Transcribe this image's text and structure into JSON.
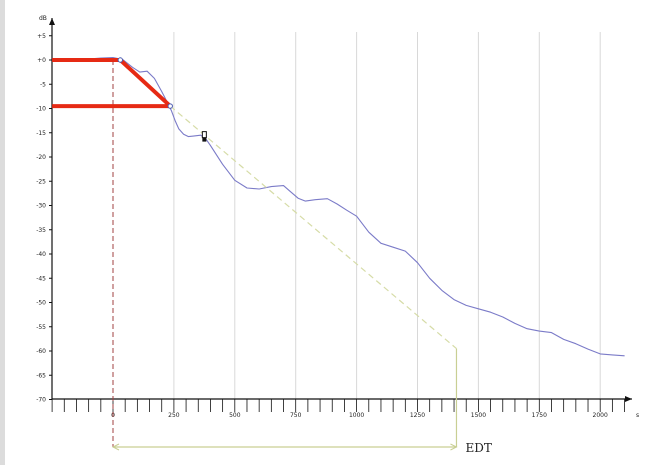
{
  "chart_data": {
    "type": "line",
    "title": "",
    "ylabel": "dB",
    "xlabel": "s",
    "ylim": [
      -70,
      5
    ],
    "xlim": [
      -250,
      2150
    ],
    "y_ticks": [
      "+5",
      "+0",
      "-5",
      "-10",
      "-15",
      "-20",
      "-25",
      "-30",
      "-35",
      "-40",
      "-45",
      "-50",
      "-55",
      "-60",
      "-65",
      "-70"
    ],
    "x_ticks": [
      "0",
      "250",
      "500",
      "750",
      "1000",
      "1250",
      "1500",
      "1750",
      "2000"
    ],
    "x_tick_values": [
      0,
      250,
      500,
      750,
      1000,
      1250,
      1500,
      1750,
      2000
    ],
    "grid": "vertical",
    "series": [
      {
        "kind": "decay-curve",
        "color": "#7b7bc8",
        "x": [
          -250,
          -200,
          -150,
          -100,
          -50,
          0,
          40,
          80,
          110,
          140,
          170,
          200,
          225,
          240,
          255,
          270,
          290,
          310,
          330,
          360,
          380,
          400,
          450,
          500,
          550,
          600,
          650,
          700,
          730,
          760,
          790,
          830,
          880,
          920,
          960,
          1000,
          1050,
          1100,
          1150,
          1200,
          1250,
          1300,
          1350,
          1400,
          1450,
          1500,
          1550,
          1600,
          1650,
          1700,
          1750,
          1800,
          1850,
          1900,
          1950,
          2000,
          2050,
          2100
        ],
        "y": [
          0,
          0.1,
          0.3,
          0.2,
          0.4,
          0.5,
          0.1,
          -1.5,
          -2.5,
          -2.3,
          -3.8,
          -6.5,
          -8.9,
          -10.5,
          -12.5,
          -14.2,
          -15.3,
          -15.8,
          -15.7,
          -15.5,
          -16.2,
          -17.6,
          -21.5,
          -24.8,
          -26.4,
          -26.6,
          -26.1,
          -25.9,
          -27.2,
          -28.5,
          -29.1,
          -28.8,
          -28.6,
          -29.7,
          -31.0,
          -32.2,
          -35.5,
          -37.8,
          -38.6,
          -39.4,
          -41.8,
          -45.0,
          -47.5,
          -49.4,
          -50.6,
          -51.3,
          -52.0,
          -53.0,
          -54.3,
          -55.4,
          -55.9,
          -56.2,
          -57.6,
          -58.5,
          -59.6,
          -60.6,
          -60.8,
          -61.0
        ]
      },
      {
        "kind": "red-markers",
        "color": "#e62a14",
        "segments": [
          {
            "x": [
              -250,
              30
            ],
            "y": [
              0,
              0
            ]
          },
          {
            "x": [
              30,
              235
            ],
            "y": [
              0,
              -9.5
            ]
          },
          {
            "x": [
              -250,
              235
            ],
            "y": [
              -9.5,
              -9.5
            ]
          }
        ]
      },
      {
        "kind": "edt-extrapolation",
        "color": "#d6dca7",
        "x": [
          235,
          1410
        ],
        "y": [
          -9.5,
          -59.5
        ]
      }
    ],
    "points": [
      {
        "x": 30,
        "y": 0
      },
      {
        "x": 235,
        "y": -9.5
      }
    ],
    "cursor_marker": {
      "x": 375,
      "y": -16
    },
    "annotations": [
      {
        "text": "EDT",
        "from_x": 0,
        "to_x": 1410
      }
    ],
    "colors": {
      "axis": "#111111",
      "grid": "#d8d8d8",
      "zero_marker": "#a04040",
      "bracket": "#c9cf94"
    }
  }
}
